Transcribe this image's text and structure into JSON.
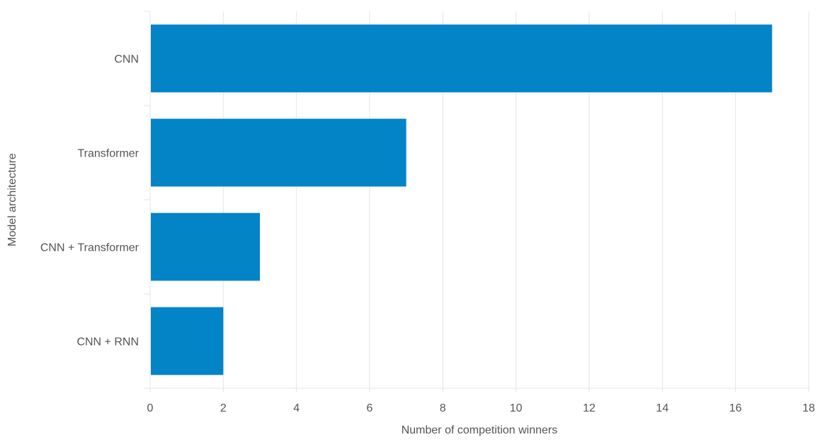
{
  "chart_data": {
    "type": "bar",
    "orientation": "horizontal",
    "categories": [
      "CNN",
      "Transformer",
      "CNN + Transformer",
      "CNN + RNN"
    ],
    "values": [
      17,
      7,
      3,
      2
    ],
    "xlabel": "Number of competition winners",
    "ylabel": "Model architecture",
    "xlim": [
      0,
      18
    ],
    "xticks": [
      "0",
      "2",
      "4",
      "6",
      "8",
      "10",
      "12",
      "14",
      "16",
      "18"
    ],
    "grid": "vertical",
    "bar_color": "#0284c7"
  }
}
